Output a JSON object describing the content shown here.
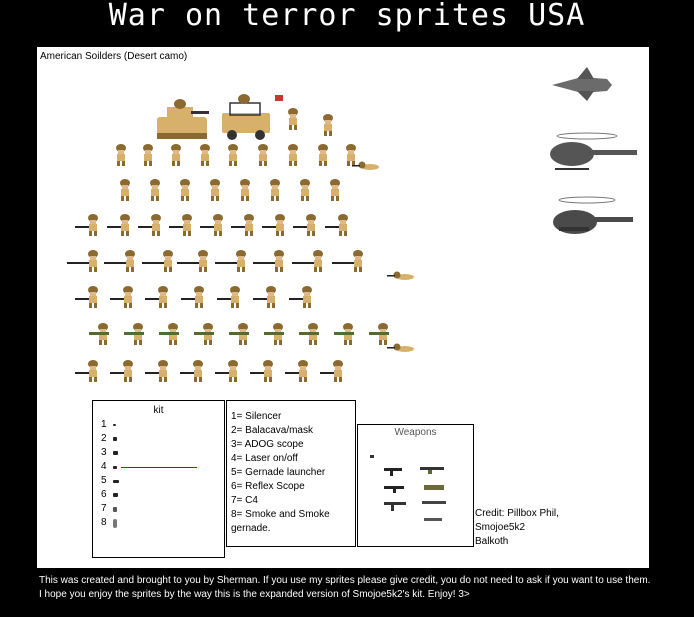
{
  "title": "War on terror sprites USA",
  "sheet": {
    "caption": "American Soilders (Desert camo)"
  },
  "kit": {
    "title": "kit",
    "numbers": [
      "1",
      "2",
      "3",
      "4",
      "5",
      "6",
      "7",
      "8"
    ]
  },
  "legend": {
    "lines": [
      "1= Silencer",
      "2= Balacava/mask",
      "3= ADOG scope",
      "4= Laser on/off",
      "5= Gernade launcher",
      "6= Reflex Scope",
      "7= C4",
      "8= Smoke and Smoke",
      "gernade."
    ]
  },
  "weapons": {
    "title": "Weapons"
  },
  "credit": {
    "lines": [
      "Credit: Pillbox Phil,",
      "Smojoe5k2",
      "Balkoth"
    ]
  },
  "footer": "This was created and brought to you by Sherman. If you use my sprites please give credit, you do not need to ask if you want to use them. I hope you enjoy the sprites by the way this is the expanded version of Smojoe5k2's kit. Enjoy! 3>",
  "colors": {
    "background": "#000000",
    "sheet": "#ffffff",
    "camo": "#d7b16b",
    "camo_dark": "#8a6a30",
    "vehicle_grey": "#6b6b6b",
    "laser": "#cc0000"
  },
  "icons": [
    "soldier-sprite",
    "tank-sprite",
    "humvee-sprite",
    "jet-sprite",
    "huey-helicopter-sprite",
    "apache-helicopter-sprite",
    "rifle-sprite",
    "kit-attachment-icon"
  ]
}
